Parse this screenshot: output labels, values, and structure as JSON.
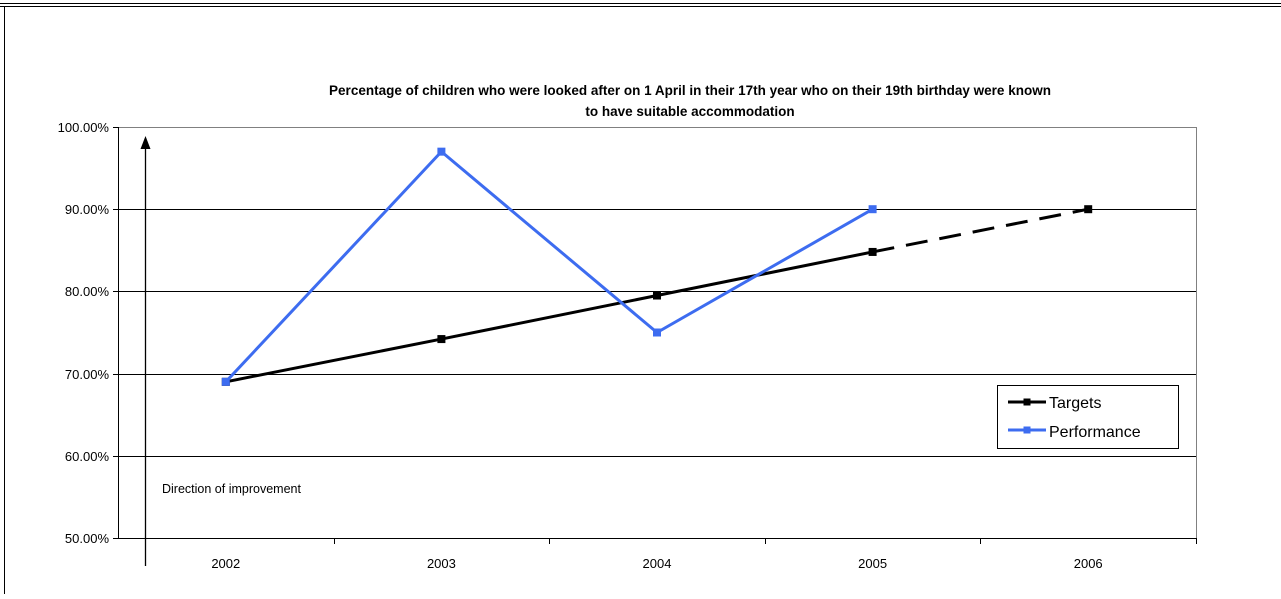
{
  "chart_data": {
    "type": "line",
    "title_line1": "Percentage of children who were looked after on 1 April in their 17th year who on their 19th birthday were known",
    "title_line2": "to have suitable accommodation",
    "categories": [
      "2002",
      "2003",
      "2004",
      "2005",
      "2006"
    ],
    "y_tick_labels": [
      "100.00%",
      "90.00%",
      "80.00%",
      "70.00%",
      "60.00%",
      "50.00%"
    ],
    "ylim": [
      50,
      100
    ],
    "y_tick_values": [
      100,
      90,
      80,
      70,
      60,
      50
    ],
    "grid": true,
    "legend_position": "right",
    "annotation": "Direction of improvement",
    "series": [
      {
        "name": "Targets",
        "color": "#000000",
        "values": [
          69.0,
          74.2,
          79.5,
          84.8,
          90.0
        ],
        "dashed_from_index": 3
      },
      {
        "name": "Performance",
        "color": "#3d6cf0",
        "values": [
          69.0,
          97.0,
          75.0,
          90.0,
          null
        ]
      }
    ]
  }
}
